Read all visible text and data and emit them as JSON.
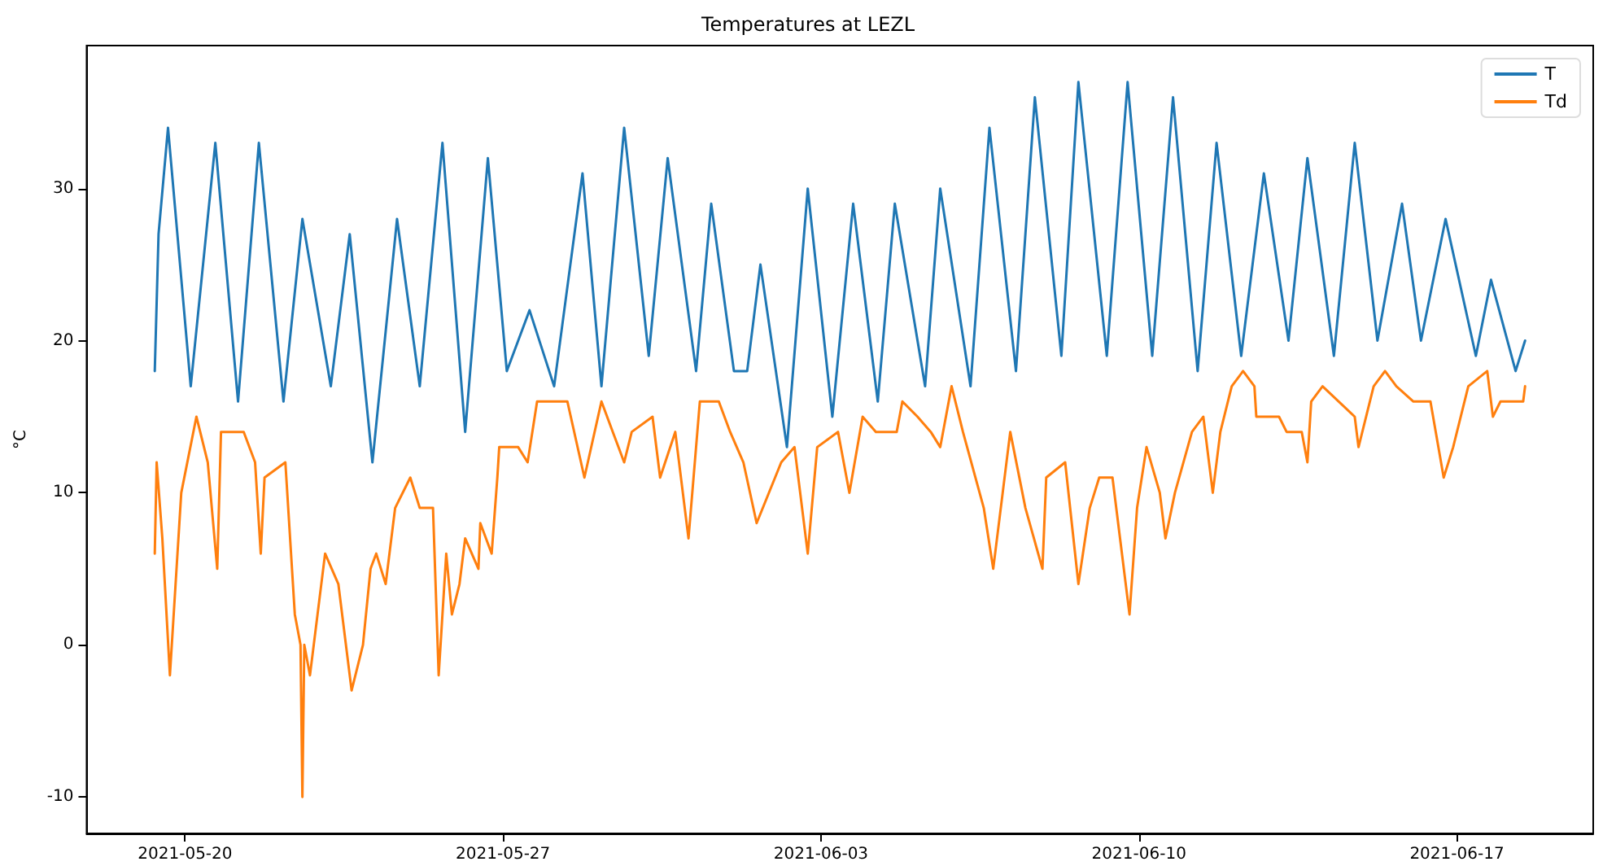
{
  "chart_data": {
    "type": "line",
    "title": "Temperatures at LEZL",
    "ylabel": "°C",
    "xlim": [
      "2021-05-17T20:00",
      "2021-06-20T00:00"
    ],
    "xticks": [
      "2021-05-20",
      "2021-05-27",
      "2021-06-03",
      "2021-06-10",
      "2021-06-17"
    ],
    "ylim": [
      -12.4,
      39.4
    ],
    "yticks": [
      -10,
      0,
      10,
      20,
      30
    ],
    "grid": false,
    "legend": "top right",
    "marker": "none",
    "line_style": "solid",
    "series": [
      {
        "name": "T",
        "color": "#1f77b4",
        "x": [
          "2021-05-19T08:00",
          "2021-05-19T10:00",
          "2021-05-19T15:00",
          "2021-05-20T03:00",
          "2021-05-20T16:00",
          "2021-05-21T04:00",
          "2021-05-21T15:00",
          "2021-05-22T04:00",
          "2021-05-22T14:00",
          "2021-05-23T05:00",
          "2021-05-23T15:00",
          "2021-05-24T03:00",
          "2021-05-24T16:00",
          "2021-05-25T04:00",
          "2021-05-25T16:00",
          "2021-05-26T04:00",
          "2021-05-26T16:00",
          "2021-05-27T02:00",
          "2021-05-27T14:00",
          "2021-05-28T03:00",
          "2021-05-28T18:00",
          "2021-05-29T04:00",
          "2021-05-29T16:00",
          "2021-05-30T05:00",
          "2021-05-30T15:00",
          "2021-05-31T06:00",
          "2021-05-31T14:00",
          "2021-06-01T02:00",
          "2021-06-01T09:00",
          "2021-06-01T16:00",
          "2021-06-02T06:00",
          "2021-06-02T17:00",
          "2021-06-03T06:00",
          "2021-06-03T17:00",
          "2021-06-04T06:00",
          "2021-06-04T15:00",
          "2021-06-05T07:00",
          "2021-06-05T15:00",
          "2021-06-06T07:00",
          "2021-06-06T17:00",
          "2021-06-07T07:00",
          "2021-06-07T17:00",
          "2021-06-08T07:00",
          "2021-06-08T16:00",
          "2021-06-09T07:00",
          "2021-06-09T18:00",
          "2021-06-10T07:00",
          "2021-06-10T18:00",
          "2021-06-11T07:00",
          "2021-06-11T17:00",
          "2021-06-12T06:00",
          "2021-06-12T18:00",
          "2021-06-13T07:00",
          "2021-06-13T17:00",
          "2021-06-14T07:00",
          "2021-06-14T18:00",
          "2021-06-15T06:00",
          "2021-06-15T19:00",
          "2021-06-16T05:00",
          "2021-06-16T18:00",
          "2021-06-17T10:00",
          "2021-06-17T18:00",
          "2021-06-18T07:00",
          "2021-06-18T12:00"
        ],
        "values": [
          18,
          27,
          34,
          17,
          33,
          16,
          33,
          16,
          28,
          17,
          27,
          12,
          28,
          17,
          33,
          14,
          32,
          18,
          22,
          17,
          31,
          17,
          34,
          19,
          32,
          18,
          29,
          18,
          18,
          25,
          13,
          30,
          15,
          29,
          16,
          29,
          17,
          30,
          17,
          34,
          18,
          36,
          19,
          37,
          19,
          37,
          19,
          36,
          18,
          33,
          19,
          31,
          20,
          32,
          19,
          33,
          20,
          29,
          20,
          28,
          19,
          24,
          18,
          20
        ]
      },
      {
        "name": "Td",
        "color": "#ff7f0e",
        "x": [
          "2021-05-19T08:00",
          "2021-05-19T09:00",
          "2021-05-19T12:00",
          "2021-05-19T16:00",
          "2021-05-19T22:00",
          "2021-05-20T06:00",
          "2021-05-20T12:00",
          "2021-05-20T17:00",
          "2021-05-20T19:00",
          "2021-05-21T07:00",
          "2021-05-21T13:00",
          "2021-05-21T16:00",
          "2021-05-21T18:00",
          "2021-05-22T05:00",
          "2021-05-22T10:00",
          "2021-05-22T13:00",
          "2021-05-22T14:00",
          "2021-05-22T15:00",
          "2021-05-22T18:00",
          "2021-05-22T22:00",
          "2021-05-23T02:00",
          "2021-05-23T09:00",
          "2021-05-23T16:00",
          "2021-05-23T22:00",
          "2021-05-24T02:00",
          "2021-05-24T05:00",
          "2021-05-24T10:00",
          "2021-05-24T15:00",
          "2021-05-24T23:00",
          "2021-05-25T04:00",
          "2021-05-25T11:00",
          "2021-05-25T14:00",
          "2021-05-25T18:00",
          "2021-05-25T21:00",
          "2021-05-26T01:00",
          "2021-05-26T04:00",
          "2021-05-26T11:00",
          "2021-05-26T12:00",
          "2021-05-26T18:00",
          "2021-05-26T21:00",
          "2021-05-26T22:00",
          "2021-05-27T08:00",
          "2021-05-27T13:00",
          "2021-05-27T18:00",
          "2021-05-28T10:00",
          "2021-05-28T19:00",
          "2021-05-29T04:00",
          "2021-05-29T10:00",
          "2021-05-29T16:00",
          "2021-05-29T20:00",
          "2021-05-30T07:00",
          "2021-05-30T11:00",
          "2021-05-30T19:00",
          "2021-05-31T02:00",
          "2021-05-31T08:00",
          "2021-05-31T18:00",
          "2021-06-01T00:00",
          "2021-06-01T07:00",
          "2021-06-01T14:00",
          "2021-06-02T03:00",
          "2021-06-02T10:00",
          "2021-06-02T17:00",
          "2021-06-02T22:00",
          "2021-06-03T09:00",
          "2021-06-03T15:00",
          "2021-06-03T22:00",
          "2021-06-04T05:00",
          "2021-06-04T16:00",
          "2021-06-04T19:00",
          "2021-06-05T03:00",
          "2021-06-05T10:00",
          "2021-06-05T15:00",
          "2021-06-05T21:00",
          "2021-06-06T03:00",
          "2021-06-06T14:00",
          "2021-06-06T19:00",
          "2021-06-07T00:00",
          "2021-06-07T04:00",
          "2021-06-07T12:00",
          "2021-06-07T21:00",
          "2021-06-07T23:00",
          "2021-06-08T09:00",
          "2021-06-08T16:00",
          "2021-06-08T22:00",
          "2021-06-09T03:00",
          "2021-06-09T10:00",
          "2021-06-09T14:00",
          "2021-06-09T19:00",
          "2021-06-09T23:00",
          "2021-06-10T04:00",
          "2021-06-10T11:00",
          "2021-06-10T14:00",
          "2021-06-10T19:00",
          "2021-06-11T04:00",
          "2021-06-11T10:00",
          "2021-06-11T15:00",
          "2021-06-11T19:00",
          "2021-06-12T01:00",
          "2021-06-12T07:00",
          "2021-06-12T13:00",
          "2021-06-12T14:00",
          "2021-06-13T02:00",
          "2021-06-13T06:00",
          "2021-06-13T14:00",
          "2021-06-13T17:00",
          "2021-06-13T19:00",
          "2021-06-14T01:00",
          "2021-06-14T18:00",
          "2021-06-14T20:00",
          "2021-06-15T04:00",
          "2021-06-15T10:00",
          "2021-06-15T16:00",
          "2021-06-16T01:00",
          "2021-06-16T10:00",
          "2021-06-16T17:00",
          "2021-06-16T22:00",
          "2021-06-17T06:00",
          "2021-06-17T16:00",
          "2021-06-17T19:00",
          "2021-06-17T23:00",
          "2021-06-18T11:00",
          "2021-06-18T12:00"
        ],
        "values": [
          6,
          12,
          7,
          -2,
          10,
          15,
          12,
          5,
          14,
          14,
          12,
          6,
          11,
          12,
          2,
          0,
          -10,
          0,
          -2,
          2,
          6,
          4,
          -3,
          0,
          5,
          6,
          4,
          9,
          11,
          9,
          9,
          -2,
          6,
          2,
          4,
          7,
          5,
          8,
          6,
          11,
          13,
          13,
          12,
          16,
          16,
          11,
          16,
          14,
          12,
          14,
          15,
          11,
          14,
          7,
          16,
          16,
          14,
          12,
          8,
          12,
          13,
          6,
          13,
          14,
          10,
          15,
          14,
          14,
          16,
          15,
          14,
          13,
          17,
          14,
          9,
          5,
          10,
          14,
          9,
          5,
          11,
          12,
          4,
          9,
          11,
          11,
          7,
          2,
          9,
          13,
          10,
          7,
          10,
          14,
          15,
          10,
          14,
          17,
          18,
          17,
          15,
          15,
          14,
          14,
          12,
          16,
          17,
          15,
          13,
          17,
          18,
          17,
          16,
          16,
          11,
          13,
          17,
          18,
          15,
          16,
          16,
          17
        ]
      }
    ]
  }
}
